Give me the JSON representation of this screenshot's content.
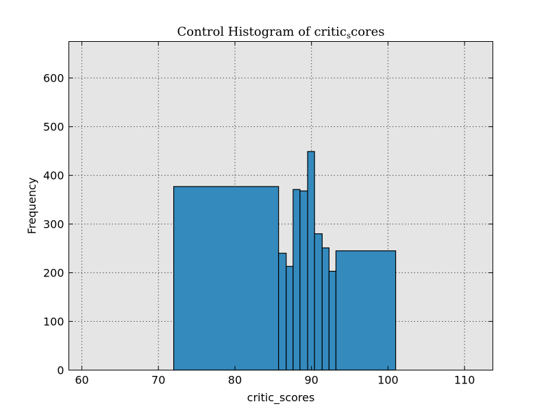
{
  "chart_data": {
    "type": "bar",
    "title": "Control Histogram of critic",
    "title_subscript": "s",
    "title_suffix": "cores",
    "xlabel": "critic_scores",
    "ylabel": "Frequency",
    "xlim": [
      58.3,
      113.7
    ],
    "ylim": [
      0,
      675
    ],
    "xticks": [
      60,
      70,
      80,
      90,
      100,
      110
    ],
    "yticks": [
      0,
      100,
      200,
      300,
      400,
      500,
      600
    ],
    "grid": true,
    "bar_color": "#348abd",
    "background_color": "#e5e5e5",
    "bins": [
      {
        "x0": 72.0,
        "x1": 85.7,
        "value": 377
      },
      {
        "x0": 85.7,
        "x1": 86.7,
        "value": 240
      },
      {
        "x0": 86.7,
        "x1": 87.6,
        "value": 213
      },
      {
        "x0": 87.6,
        "x1": 88.5,
        "value": 371
      },
      {
        "x0": 88.5,
        "x1": 89.5,
        "value": 368
      },
      {
        "x0": 89.5,
        "x1": 90.4,
        "value": 449
      },
      {
        "x0": 90.4,
        "x1": 91.4,
        "value": 280
      },
      {
        "x0": 91.4,
        "x1": 92.3,
        "value": 251
      },
      {
        "x0": 92.3,
        "x1": 93.2,
        "value": 203
      },
      {
        "x0": 93.2,
        "x1": 101.0,
        "value": 245
      }
    ]
  }
}
